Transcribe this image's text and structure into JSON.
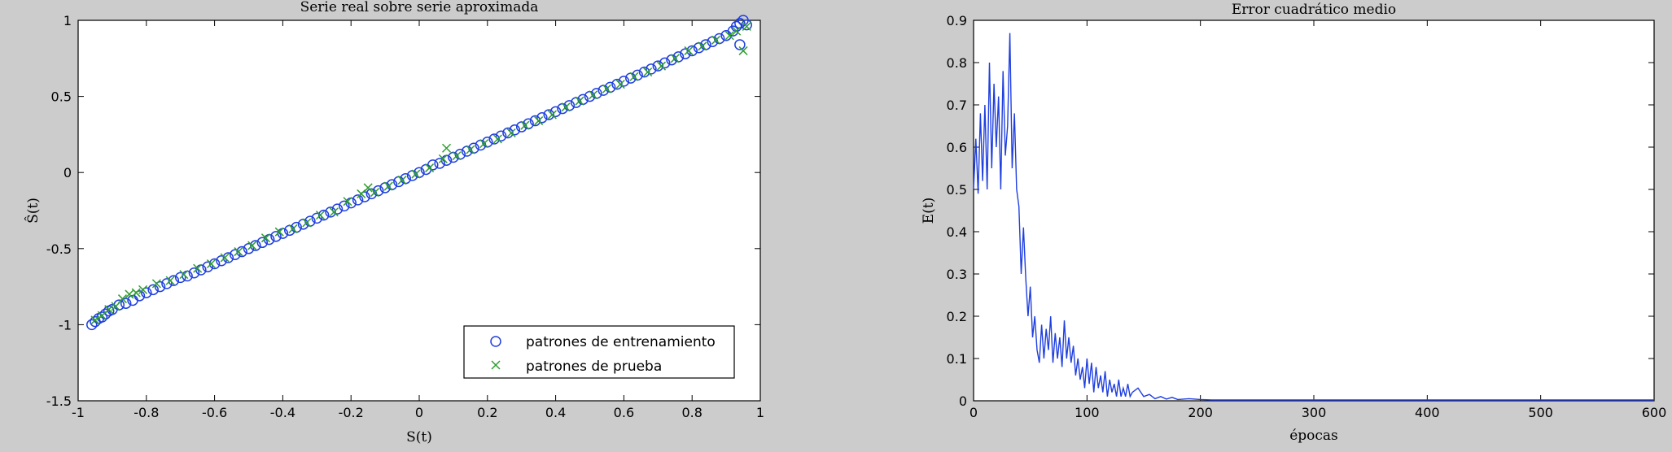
{
  "chart_data": [
    {
      "type": "scatter",
      "title": "Serie real sobre serie aproximada",
      "xlabel": "S(t)",
      "ylabel": "Ŝ(t)",
      "xlim": [
        -1,
        1
      ],
      "ylim": [
        -1.5,
        1
      ],
      "xticks": [
        -1,
        -0.8,
        -0.6,
        -0.4,
        -0.2,
        0,
        0.2,
        0.4,
        0.6,
        0.8,
        1
      ],
      "xtick_labels": [
        "-1",
        "-0.8",
        "-0.6",
        "-0.4",
        "-0.2",
        "0",
        "0.2",
        "0.4",
        "0.6",
        "0.8",
        "1"
      ],
      "yticks": [
        -1.5,
        -1,
        -0.5,
        0,
        0.5,
        1
      ],
      "ytick_labels": [
        "-1.5",
        "-1",
        "-0.5",
        "0",
        "0.5",
        "1"
      ],
      "grid": false,
      "legend_position": "bottom-right",
      "series": [
        {
          "name": "patrones de entrenamiento",
          "marker": "circle",
          "color": "#1f3fe0",
          "points": [
            [
              -0.96,
              -1.0
            ],
            [
              -0.95,
              -0.98
            ],
            [
              -0.94,
              -0.96
            ],
            [
              -0.93,
              -0.95
            ],
            [
              -0.92,
              -0.93
            ],
            [
              -0.91,
              -0.91
            ],
            [
              -0.9,
              -0.9
            ],
            [
              -0.88,
              -0.87
            ],
            [
              -0.86,
              -0.86
            ],
            [
              -0.84,
              -0.84
            ],
            [
              -0.82,
              -0.81
            ],
            [
              -0.8,
              -0.79
            ],
            [
              -0.78,
              -0.77
            ],
            [
              -0.76,
              -0.75
            ],
            [
              -0.74,
              -0.73
            ],
            [
              -0.72,
              -0.71
            ],
            [
              -0.7,
              -0.69
            ],
            [
              -0.68,
              -0.68
            ],
            [
              -0.66,
              -0.66
            ],
            [
              -0.64,
              -0.64
            ],
            [
              -0.62,
              -0.62
            ],
            [
              -0.6,
              -0.6
            ],
            [
              -0.58,
              -0.58
            ],
            [
              -0.56,
              -0.56
            ],
            [
              -0.54,
              -0.54
            ],
            [
              -0.52,
              -0.52
            ],
            [
              -0.5,
              -0.5
            ],
            [
              -0.48,
              -0.48
            ],
            [
              -0.46,
              -0.46
            ],
            [
              -0.44,
              -0.44
            ],
            [
              -0.42,
              -0.42
            ],
            [
              -0.4,
              -0.4
            ],
            [
              -0.38,
              -0.38
            ],
            [
              -0.36,
              -0.36
            ],
            [
              -0.34,
              -0.34
            ],
            [
              -0.32,
              -0.32
            ],
            [
              -0.3,
              -0.3
            ],
            [
              -0.28,
              -0.28
            ],
            [
              -0.26,
              -0.26
            ],
            [
              -0.24,
              -0.24
            ],
            [
              -0.22,
              -0.22
            ],
            [
              -0.2,
              -0.2
            ],
            [
              -0.18,
              -0.18
            ],
            [
              -0.16,
              -0.16
            ],
            [
              -0.14,
              -0.14
            ],
            [
              -0.12,
              -0.12
            ],
            [
              -0.1,
              -0.1
            ],
            [
              -0.08,
              -0.08
            ],
            [
              -0.06,
              -0.06
            ],
            [
              -0.04,
              -0.04
            ],
            [
              -0.02,
              -0.02
            ],
            [
              0.0,
              0.0
            ],
            [
              0.02,
              0.02
            ],
            [
              0.04,
              0.05
            ],
            [
              0.06,
              0.06
            ],
            [
              0.08,
              0.08
            ],
            [
              0.1,
              0.1
            ],
            [
              0.12,
              0.12
            ],
            [
              0.14,
              0.14
            ],
            [
              0.16,
              0.16
            ],
            [
              0.18,
              0.18
            ],
            [
              0.2,
              0.2
            ],
            [
              0.22,
              0.22
            ],
            [
              0.24,
              0.24
            ],
            [
              0.26,
              0.26
            ],
            [
              0.28,
              0.28
            ],
            [
              0.3,
              0.3
            ],
            [
              0.32,
              0.32
            ],
            [
              0.34,
              0.34
            ],
            [
              0.36,
              0.36
            ],
            [
              0.38,
              0.38
            ],
            [
              0.4,
              0.4
            ],
            [
              0.42,
              0.42
            ],
            [
              0.44,
              0.44
            ],
            [
              0.46,
              0.46
            ],
            [
              0.48,
              0.48
            ],
            [
              0.5,
              0.5
            ],
            [
              0.52,
              0.52
            ],
            [
              0.54,
              0.54
            ],
            [
              0.56,
              0.56
            ],
            [
              0.58,
              0.58
            ],
            [
              0.6,
              0.6
            ],
            [
              0.62,
              0.62
            ],
            [
              0.64,
              0.64
            ],
            [
              0.66,
              0.66
            ],
            [
              0.68,
              0.68
            ],
            [
              0.7,
              0.7
            ],
            [
              0.72,
              0.72
            ],
            [
              0.74,
              0.74
            ],
            [
              0.76,
              0.76
            ],
            [
              0.78,
              0.78
            ],
            [
              0.8,
              0.8
            ],
            [
              0.82,
              0.82
            ],
            [
              0.84,
              0.84
            ],
            [
              0.86,
              0.86
            ],
            [
              0.88,
              0.88
            ],
            [
              0.9,
              0.9
            ],
            [
              0.92,
              0.93
            ],
            [
              0.93,
              0.96
            ],
            [
              0.94,
              0.98
            ],
            [
              0.95,
              1.0
            ],
            [
              0.94,
              0.84
            ],
            [
              0.96,
              0.97
            ]
          ]
        },
        {
          "name": "patrones de prueba",
          "marker": "x",
          "color": "#2e9e2e",
          "points": [
            [
              -0.95,
              -0.97
            ],
            [
              -0.93,
              -0.94
            ],
            [
              -0.91,
              -0.9
            ],
            [
              -0.89,
              -0.88
            ],
            [
              -0.87,
              -0.83
            ],
            [
              -0.85,
              -0.8
            ],
            [
              -0.83,
              -0.79
            ],
            [
              -0.81,
              -0.77
            ],
            [
              -0.77,
              -0.73
            ],
            [
              -0.73,
              -0.71
            ],
            [
              -0.69,
              -0.67
            ],
            [
              -0.65,
              -0.63
            ],
            [
              -0.61,
              -0.6
            ],
            [
              -0.57,
              -0.56
            ],
            [
              -0.53,
              -0.52
            ],
            [
              -0.49,
              -0.48
            ],
            [
              -0.45,
              -0.43
            ],
            [
              -0.41,
              -0.39
            ],
            [
              -0.37,
              -0.37
            ],
            [
              -0.33,
              -0.33
            ],
            [
              -0.29,
              -0.28
            ],
            [
              -0.25,
              -0.26
            ],
            [
              -0.21,
              -0.19
            ],
            [
              -0.17,
              -0.14
            ],
            [
              -0.15,
              -0.1
            ],
            [
              -0.13,
              -0.13
            ],
            [
              -0.09,
              -0.09
            ],
            [
              -0.05,
              -0.05
            ],
            [
              -0.01,
              -0.01
            ],
            [
              0.03,
              0.03
            ],
            [
              0.07,
              0.09
            ],
            [
              0.08,
              0.16
            ],
            [
              0.11,
              0.11
            ],
            [
              0.15,
              0.15
            ],
            [
              0.19,
              0.19
            ],
            [
              0.23,
              0.22
            ],
            [
              0.27,
              0.26
            ],
            [
              0.31,
              0.31
            ],
            [
              0.35,
              0.34
            ],
            [
              0.39,
              0.38
            ],
            [
              0.43,
              0.43
            ],
            [
              0.47,
              0.47
            ],
            [
              0.51,
              0.51
            ],
            [
              0.55,
              0.55
            ],
            [
              0.59,
              0.58
            ],
            [
              0.63,
              0.63
            ],
            [
              0.67,
              0.66
            ],
            [
              0.71,
              0.7
            ],
            [
              0.75,
              0.75
            ],
            [
              0.79,
              0.8
            ],
            [
              0.83,
              0.83
            ],
            [
              0.87,
              0.87
            ],
            [
              0.91,
              0.9
            ],
            [
              0.93,
              0.93
            ],
            [
              0.95,
              0.8
            ],
            [
              0.96,
              0.96
            ]
          ]
        }
      ]
    },
    {
      "type": "line",
      "title": "Error cuadrático medio",
      "xlabel": "épocas",
      "ylabel": "E(t)",
      "xlim": [
        0,
        600
      ],
      "ylim": [
        0,
        0.9
      ],
      "xticks": [
        0,
        100,
        200,
        300,
        400,
        500,
        600
      ],
      "xtick_labels": [
        "0",
        "100",
        "200",
        "300",
        "400",
        "500",
        "600"
      ],
      "yticks": [
        0,
        0.1,
        0.2,
        0.3,
        0.4,
        0.5,
        0.6,
        0.7,
        0.8,
        0.9
      ],
      "ytick_labels": [
        "0",
        "0.1",
        "0.2",
        "0.3",
        "0.4",
        "0.5",
        "0.6",
        "0.7",
        "0.8",
        "0.9"
      ],
      "grid": false,
      "series": [
        {
          "color": "#1f3fe0",
          "x": [
            0,
            2,
            4,
            6,
            8,
            10,
            12,
            14,
            16,
            18,
            20,
            22,
            24,
            26,
            28,
            30,
            32,
            34,
            36,
            38,
            40,
            42,
            44,
            46,
            48,
            50,
            52,
            54,
            56,
            58,
            60,
            62,
            64,
            66,
            68,
            70,
            72,
            74,
            76,
            78,
            80,
            82,
            84,
            86,
            88,
            90,
            92,
            94,
            96,
            98,
            100,
            102,
            104,
            106,
            108,
            110,
            112,
            114,
            116,
            118,
            120,
            122,
            124,
            126,
            128,
            130,
            132,
            134,
            136,
            138,
            140,
            145,
            150,
            155,
            160,
            165,
            170,
            175,
            180,
            190,
            200,
            210,
            220,
            250,
            300,
            350,
            400,
            450,
            500,
            550,
            600
          ],
          "y": [
            0.5,
            0.62,
            0.49,
            0.68,
            0.52,
            0.7,
            0.5,
            0.8,
            0.55,
            0.75,
            0.6,
            0.72,
            0.5,
            0.78,
            0.58,
            0.65,
            0.87,
            0.55,
            0.68,
            0.5,
            0.46,
            0.3,
            0.41,
            0.29,
            0.2,
            0.27,
            0.15,
            0.2,
            0.12,
            0.09,
            0.18,
            0.1,
            0.17,
            0.12,
            0.2,
            0.09,
            0.16,
            0.1,
            0.15,
            0.08,
            0.19,
            0.1,
            0.15,
            0.09,
            0.13,
            0.06,
            0.1,
            0.05,
            0.08,
            0.03,
            0.1,
            0.04,
            0.09,
            0.02,
            0.08,
            0.03,
            0.06,
            0.02,
            0.07,
            0.01,
            0.05,
            0.02,
            0.04,
            0.01,
            0.05,
            0.01,
            0.03,
            0.01,
            0.04,
            0.01,
            0.02,
            0.03,
            0.01,
            0.015,
            0.005,
            0.01,
            0.004,
            0.008,
            0.003,
            0.005,
            0.003,
            0.002,
            0.002,
            0.002,
            0.002,
            0.002,
            0.002,
            0.002,
            0.002,
            0.002,
            0.002
          ]
        }
      ]
    }
  ]
}
